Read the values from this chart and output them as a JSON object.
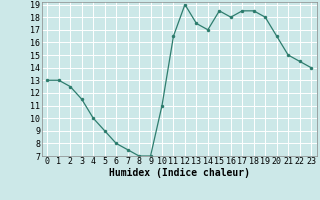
{
  "x": [
    0,
    1,
    2,
    3,
    4,
    5,
    6,
    7,
    8,
    9,
    10,
    11,
    12,
    13,
    14,
    15,
    16,
    17,
    18,
    19,
    20,
    21,
    22,
    23
  ],
  "y": [
    13,
    13,
    12.5,
    11.5,
    10,
    9,
    8,
    7.5,
    7,
    7,
    11,
    16.5,
    19,
    17.5,
    17,
    18.5,
    18,
    18.5,
    18.5,
    18,
    16.5,
    15,
    14.5,
    14
  ],
  "line_color": "#2e7d6e",
  "marker_color": "#2e7d6e",
  "bg_color": "#cce8e8",
  "grid_color": "#ffffff",
  "xlabel": "Humidex (Indice chaleur)",
  "xlim": [
    -0.5,
    23.5
  ],
  "ylim": [
    7,
    19
  ],
  "yticks": [
    7,
    8,
    9,
    10,
    11,
    12,
    13,
    14,
    15,
    16,
    17,
    18,
    19
  ],
  "xtick_labels": [
    "0",
    "1",
    "2",
    "3",
    "4",
    "5",
    "6",
    "7",
    "8",
    "9",
    "10",
    "11",
    "12",
    "13",
    "14",
    "15",
    "16",
    "17",
    "18",
    "19",
    "20",
    "21",
    "22",
    "23"
  ],
  "axis_fontsize": 7,
  "tick_fontsize": 6
}
